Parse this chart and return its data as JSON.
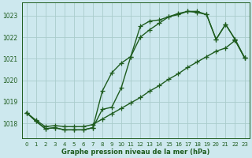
{
  "bg_color": "#cde8ee",
  "grid_color": "#aacccc",
  "line_color": "#1e5c1e",
  "xlabel": "Graphe pression niveau de la mer (hPa)",
  "xlim": [
    -0.5,
    23.5
  ],
  "ylim": [
    1017.3,
    1023.6
  ],
  "yticks": [
    1018,
    1019,
    1020,
    1021,
    1022,
    1023
  ],
  "xticks": [
    0,
    1,
    2,
    3,
    4,
    5,
    6,
    7,
    8,
    9,
    10,
    11,
    12,
    13,
    14,
    15,
    16,
    17,
    18,
    19,
    20,
    21,
    22,
    23
  ],
  "line1_x": [
    0,
    1,
    2,
    3,
    4,
    5,
    6,
    7,
    8,
    9,
    10,
    11,
    12,
    13,
    14,
    15,
    16,
    17,
    18,
    19,
    20,
    21,
    22,
    23
  ],
  "line1_y": [
    1018.5,
    1018.1,
    1017.75,
    1017.8,
    1017.7,
    1017.7,
    1017.7,
    1017.8,
    1018.65,
    1018.75,
    1019.65,
    1021.1,
    1022.5,
    1022.75,
    1022.8,
    1022.95,
    1023.05,
    1023.2,
    1023.15,
    1023.05,
    1021.9,
    1022.6,
    1021.9,
    1021.05
  ],
  "line2_x": [
    0,
    1,
    2,
    3,
    4,
    5,
    6,
    7,
    8,
    9,
    10,
    11,
    12,
    13,
    14,
    15,
    16,
    17,
    18,
    19,
    20,
    21,
    22,
    23
  ],
  "line2_y": [
    1018.5,
    1018.1,
    1017.75,
    1017.8,
    1017.7,
    1017.7,
    1017.7,
    1017.8,
    1019.5,
    1020.35,
    1020.8,
    1021.1,
    1022.0,
    1022.35,
    1022.65,
    1022.95,
    1023.1,
    1023.2,
    1023.2,
    1023.05,
    1021.9,
    1022.6,
    1021.9,
    1021.05
  ],
  "line3_x": [
    0,
    1,
    2,
    3,
    4,
    5,
    6,
    7,
    8,
    9,
    10,
    11,
    12,
    13,
    14,
    15,
    16,
    17,
    18,
    19,
    20,
    21,
    22,
    23
  ],
  "line3_y": [
    1018.5,
    1018.15,
    1017.85,
    1017.9,
    1017.85,
    1017.85,
    1017.85,
    1017.95,
    1018.2,
    1018.45,
    1018.7,
    1018.95,
    1019.2,
    1019.5,
    1019.75,
    1020.05,
    1020.3,
    1020.6,
    1020.85,
    1021.1,
    1021.35,
    1021.5,
    1021.85,
    1021.05
  ],
  "marker": "+",
  "markersize": 4,
  "linewidth": 1.0
}
